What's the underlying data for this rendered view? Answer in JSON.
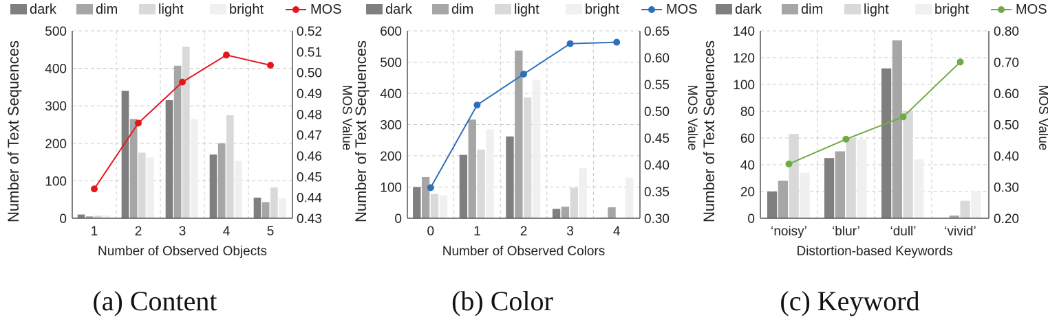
{
  "chart_data": [
    {
      "type": "bar",
      "panel_label": "(a)",
      "title": "Content",
      "xlabel": "Number of Observed Objects",
      "ylabel": "Number of Text Sequences",
      "y2label": "MOS Value",
      "categories": [
        "1",
        "2",
        "3",
        "4",
        "5"
      ],
      "ylim": [
        0,
        500
      ],
      "yticks": [
        0,
        100,
        200,
        300,
        400,
        500
      ],
      "y2lim": [
        0.43,
        0.52
      ],
      "y2ticks": [
        "0.43",
        "0.44",
        "0.45",
        "0.46",
        "0.47",
        "0.48",
        "0.49",
        "0.50",
        "0.51",
        "0.52"
      ],
      "series": [
        {
          "name": "dark",
          "color": "#7f7f7f",
          "values": [
            10,
            340,
            315,
            170,
            55
          ]
        },
        {
          "name": "dim",
          "color": "#a6a6a6",
          "values": [
            5,
            265,
            407,
            200,
            43
          ]
        },
        {
          "name": "light",
          "color": "#d9d9d9",
          "values": [
            7,
            175,
            458,
            275,
            82
          ]
        },
        {
          "name": "bright",
          "color": "#f0f0f0",
          "values": [
            8,
            162,
            265,
            153,
            53
          ]
        }
      ],
      "line": {
        "name": "MOS",
        "color": "#e8141b",
        "values": [
          0.4441,
          0.4757,
          0.4954,
          0.5084,
          0.5035
        ]
      },
      "grid": true,
      "legend": "top"
    },
    {
      "type": "bar",
      "panel_label": "(b)",
      "title": "Color",
      "xlabel": "Number of Observed Colors",
      "ylabel": "Number of Text Sequences",
      "y2label": "MOS Value",
      "categories": [
        "0",
        "1",
        "2",
        "3",
        "4"
      ],
      "ylim": [
        0,
        600
      ],
      "yticks": [
        0,
        100,
        200,
        300,
        400,
        500,
        600
      ],
      "y2lim": [
        0.3,
        0.65
      ],
      "y2ticks": [
        "0.30",
        "0.35",
        "0.40",
        "0.45",
        "0.50",
        "0.55",
        "0.60",
        "0.65"
      ],
      "series": [
        {
          "name": "dark",
          "color": "#7f7f7f",
          "values": [
            100,
            203,
            262,
            30,
            2
          ]
        },
        {
          "name": "dim",
          "color": "#a6a6a6",
          "values": [
            132,
            316,
            537,
            37,
            35
          ]
        },
        {
          "name": "light",
          "color": "#d9d9d9",
          "values": [
            78,
            220,
            387,
            98,
            0
          ]
        },
        {
          "name": "bright",
          "color": "#f0f0f0",
          "values": [
            73,
            285,
            442,
            160,
            130
          ]
        }
      ],
      "line": {
        "name": "MOS",
        "color": "#2e6fba",
        "values": [
          0.3571,
          0.5116,
          0.5693,
          0.6262,
          0.6288
        ]
      },
      "grid": true,
      "legend": "top"
    },
    {
      "type": "bar",
      "panel_label": "(c)",
      "title": "Keyword",
      "xlabel": "Distortion-based Keywords",
      "ylabel": "Number of Text Sequences",
      "y2label": "MOS Value",
      "categories": [
        "‘noisy’",
        "‘blur’",
        "‘dull’",
        "‘vivid’"
      ],
      "ylim": [
        0,
        140
      ],
      "yticks": [
        0,
        20,
        40,
        60,
        80,
        100,
        120,
        140
      ],
      "y2lim": [
        0.2,
        0.8
      ],
      "y2ticks": [
        "0.20",
        "0.30",
        "0.40",
        "0.50",
        "0.60",
        "0.70",
        "0.80"
      ],
      "series": [
        {
          "name": "dark",
          "color": "#7f7f7f",
          "values": [
            20,
            45,
            112,
            0
          ]
        },
        {
          "name": "dim",
          "color": "#a6a6a6",
          "values": [
            28,
            50,
            133,
            2
          ]
        },
        {
          "name": "light",
          "color": "#d9d9d9",
          "values": [
            63,
            60,
            80,
            13
          ]
        },
        {
          "name": "bright",
          "color": "#f0f0f0",
          "values": [
            34,
            59,
            44,
            20
          ]
        }
      ],
      "line": {
        "name": "MOS",
        "color": "#6fab44",
        "values": [
          0.3739,
          0.4532,
          0.5246,
          0.7004
        ]
      },
      "grid": true,
      "legend": "top"
    }
  ]
}
